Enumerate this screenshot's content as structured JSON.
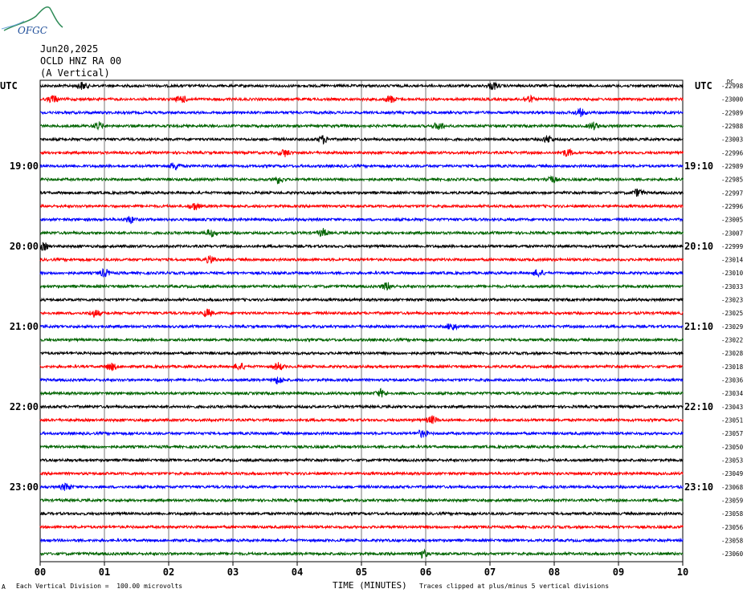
{
  "logo": {
    "text": "OFGC"
  },
  "header": {
    "date": "Jun20,2025",
    "station": "OCLD HNZ RA 00",
    "component": "(A Vertical)"
  },
  "utc_label_left": "UTC",
  "utc_label_right": "UTC",
  "right_unit": "DC",
  "footer": {
    "left_marker": "A",
    "scale_note": "Each Vertical Division =  100.00 microvolts",
    "xlabel": "TIME (MINUTES)",
    "clip_note": "Traces clipped at plus/minus 5 vertical divisions"
  },
  "chart_data": {
    "type": "line",
    "xlabel": "TIME (MINUTES)",
    "xlim": [
      0,
      10
    ],
    "x_ticks": [
      "00",
      "01",
      "02",
      "03",
      "04",
      "05",
      "06",
      "07",
      "08",
      "09",
      "10"
    ],
    "trace_colors": [
      "#000000",
      "#ff0000",
      "#0000ff",
      "#006400"
    ],
    "left_time_labels": [
      {
        "row": 6,
        "label": "19:00"
      },
      {
        "row": 12,
        "label": "20:00"
      },
      {
        "row": 18,
        "label": "21:00"
      },
      {
        "row": 24,
        "label": "22:00"
      },
      {
        "row": 30,
        "label": "23:00"
      }
    ],
    "right_time_labels": [
      {
        "row": 6,
        "label": "19:10"
      },
      {
        "row": 12,
        "label": "20:10"
      },
      {
        "row": 18,
        "label": "21:10"
      },
      {
        "row": 24,
        "label": "22:10"
      },
      {
        "row": 30,
        "label": "23:10"
      }
    ],
    "dc_offsets": [
      "-22998",
      "-23000",
      "-22989",
      "-22988",
      "-23003",
      "-22996",
      "-22989",
      "-22985",
      "-22997",
      "-22996",
      "-23005",
      "-23007",
      "-22999",
      "-23014",
      "-23010",
      "-23033",
      "-23023",
      "-23025",
      "-23029",
      "-23022",
      "-23028",
      "-23018",
      "-23036",
      "-23034",
      "-23043",
      "-23051",
      "-23057",
      "-23050",
      "-23053",
      "-23049",
      "-23068",
      "-23059",
      "-23058",
      "-23056",
      "-23058",
      "-23060"
    ],
    "events": [
      {
        "row": 0,
        "x": 0.65
      },
      {
        "row": 0,
        "x": 7.05
      },
      {
        "row": 1,
        "x": 0.2
      },
      {
        "row": 1,
        "x": 2.2
      },
      {
        "row": 1,
        "x": 5.45
      },
      {
        "row": 1,
        "x": 7.6
      },
      {
        "row": 2,
        "x": 8.4
      },
      {
        "row": 3,
        "x": 0.9
      },
      {
        "row": 3,
        "x": 6.2
      },
      {
        "row": 3,
        "x": 8.6
      },
      {
        "row": 4,
        "x": 4.4
      },
      {
        "row": 4,
        "x": 7.9
      },
      {
        "row": 5,
        "x": 3.8
      },
      {
        "row": 5,
        "x": 8.2
      },
      {
        "row": 6,
        "x": 2.1
      },
      {
        "row": 7,
        "x": 3.7
      },
      {
        "row": 7,
        "x": 7.95
      },
      {
        "row": 8,
        "x": 9.3
      },
      {
        "row": 9,
        "x": 2.4
      },
      {
        "row": 10,
        "x": 1.4
      },
      {
        "row": 11,
        "x": 2.65
      },
      {
        "row": 11,
        "x": 4.4
      },
      {
        "row": 12,
        "x": 0.05
      },
      {
        "row": 13,
        "x": 2.65
      },
      {
        "row": 14,
        "x": 1.0
      },
      {
        "row": 14,
        "x": 7.75
      },
      {
        "row": 15,
        "x": 5.4
      },
      {
        "row": 17,
        "x": 0.85
      },
      {
        "row": 17,
        "x": 2.6
      },
      {
        "row": 18,
        "x": 6.4
      },
      {
        "row": 21,
        "x": 1.1
      },
      {
        "row": 21,
        "x": 3.1
      },
      {
        "row": 21,
        "x": 3.7
      },
      {
        "row": 22,
        "x": 3.7
      },
      {
        "row": 23,
        "x": 5.3
      },
      {
        "row": 25,
        "x": 6.1
      },
      {
        "row": 26,
        "x": 5.95
      },
      {
        "row": 30,
        "x": 0.4
      },
      {
        "row": 35,
        "x": 5.95
      }
    ]
  }
}
